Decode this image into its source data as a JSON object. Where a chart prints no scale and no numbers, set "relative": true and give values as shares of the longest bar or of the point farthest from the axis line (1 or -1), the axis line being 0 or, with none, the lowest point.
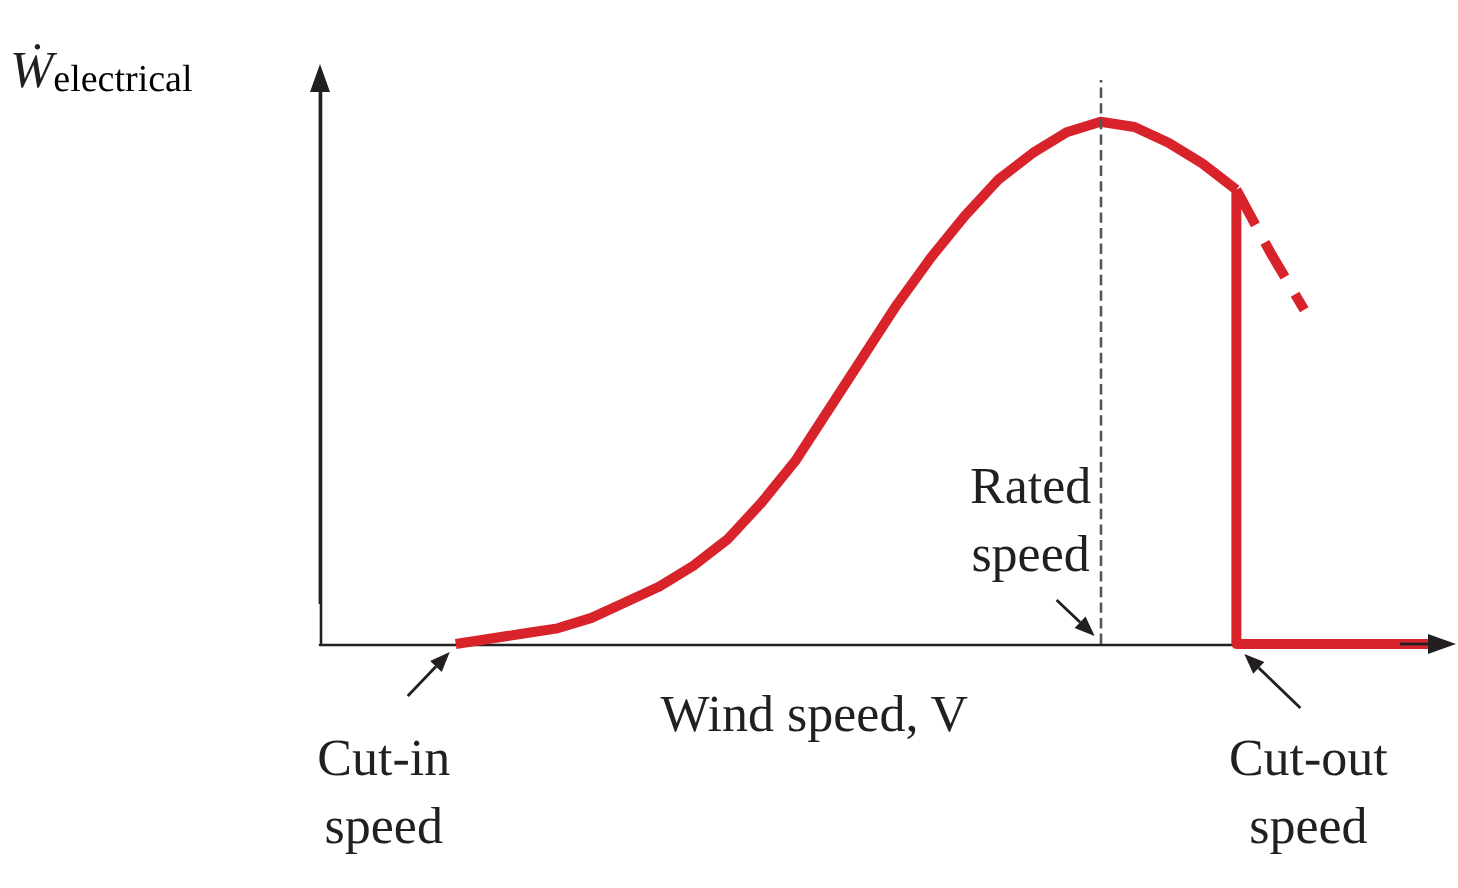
{
  "chart_data": {
    "type": "line",
    "relative": true,
    "xlabel": "Wind speed, V",
    "ylabel": "Ẇ$_{electrical}$",
    "marker": "none",
    "categories": [
      null,
      null,
      null,
      null,
      null,
      null,
      null,
      null,
      null,
      null,
      null,
      null,
      null,
      null,
      null,
      null,
      null,
      null,
      null,
      null,
      null,
      null,
      null,
      null,
      null,
      null,
      null,
      null,
      null,
      null,
      null,
      null,
      null,
      null
    ],
    "series": [
      {
        "color": "#d9232b",
        "values": [
          null,
          null,
          null,
          null,
          0,
          0.01,
          0.02,
          0.03,
          0.05,
          0.08,
          0.11,
          0.15,
          0.2,
          0.27,
          0.35,
          0.45,
          0.55,
          0.65,
          0.74,
          0.82,
          0.89,
          0.94,
          0.98,
          1,
          0.99,
          0.96,
          0.92,
          0.87,
          null,
          null,
          null,
          null,
          null,
          null
        ]
      },
      {
        "color": "#d9232b",
        "line_style": "dashed",
        "values": [
          null,
          null,
          null,
          null,
          null,
          null,
          null,
          null,
          null,
          null,
          null,
          null,
          null,
          null,
          null,
          null,
          null,
          null,
          null,
          null,
          null,
          null,
          null,
          null,
          null,
          null,
          null,
          0.87,
          0.75,
          0.64,
          null,
          null,
          null,
          null
        ]
      },
      {
        "type": "step",
        "color": "#d9232b",
        "values": [
          null,
          null,
          null,
          null,
          null,
          null,
          null,
          null,
          null,
          null,
          null,
          null,
          null,
          null,
          null,
          null,
          null,
          null,
          null,
          null,
          null,
          null,
          null,
          null,
          null,
          null,
          null,
          0.87,
          0,
          0,
          0,
          0,
          0,
          0
        ]
      }
    ],
    "ref_lines": [
      {
        "axis": "x",
        "label": "Rated speed",
        "line_style": "dashed",
        "color": "#555555"
      }
    ],
    "annotations": [
      "Cut-in speed",
      "Cut-out speed"
    ]
  }
}
